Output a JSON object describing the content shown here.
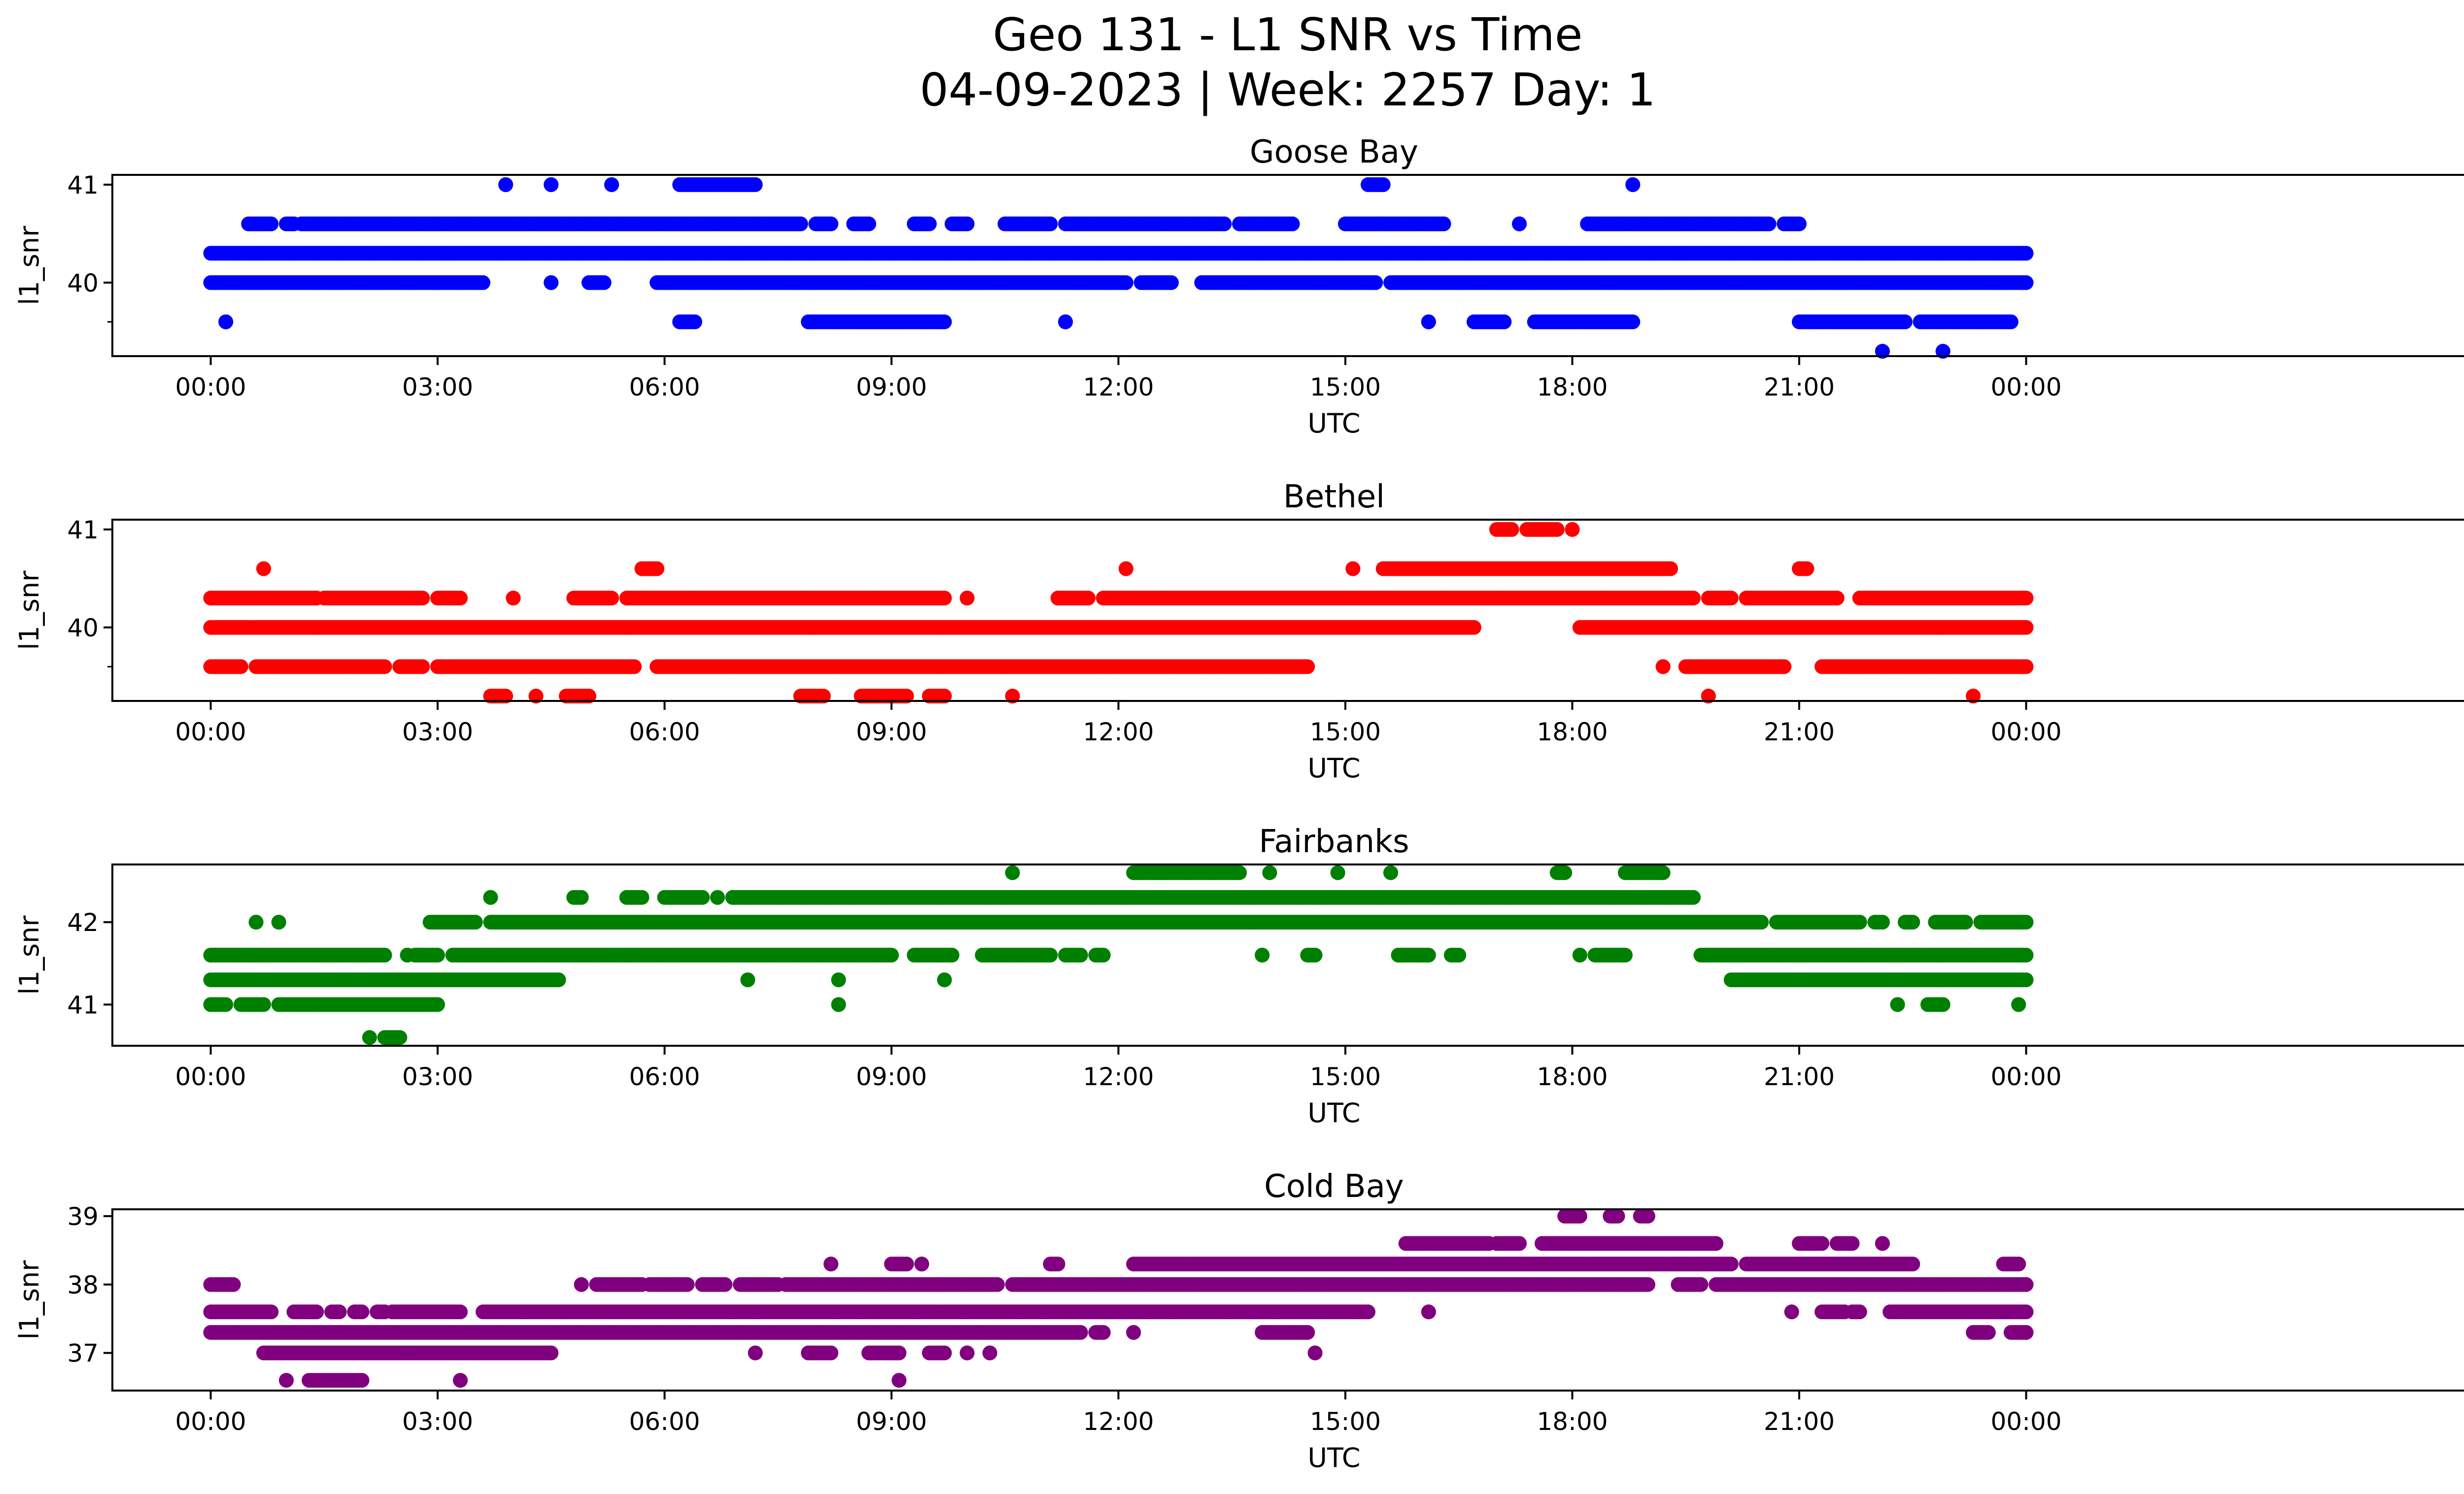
{
  "figure": {
    "title_line1": "Geo 131 - L1 SNR vs Time",
    "title_line2": "04-09-2023 | Week: 2257 Day: 1"
  },
  "chart_data": [
    {
      "type": "scatter",
      "title": "Goose Bay",
      "xlabel": "UTC",
      "ylabel": "l1_snr",
      "color": "#0000ff",
      "xlim": [
        -1.3,
        31.0
      ],
      "ylim": [
        39.25,
        41.1
      ],
      "xticks": [
        0,
        3,
        6,
        9,
        12,
        15,
        18,
        21,
        24
      ],
      "xtick_labels": [
        "00:00",
        "03:00",
        "06:00",
        "09:00",
        "12:00",
        "15:00",
        "18:00",
        "21:00",
        "00:00"
      ],
      "yticks": [
        40,
        41
      ],
      "yminor": [
        39.6
      ],
      "bands": [
        {
          "y": 40.3,
          "segments": [
            [
              0.0,
              24.0
            ]
          ]
        },
        {
          "y": 40.0,
          "segments": [
            [
              0.0,
              3.6
            ],
            [
              4.5,
              4.5
            ],
            [
              5.0,
              5.2
            ],
            [
              5.9,
              12.1
            ],
            [
              12.3,
              12.7
            ],
            [
              13.1,
              15.4
            ],
            [
              15.6,
              24.0
            ]
          ]
        },
        {
          "y": 40.6,
          "segments": [
            [
              0.5,
              0.8
            ],
            [
              1.0,
              1.1
            ],
            [
              1.2,
              7.8
            ],
            [
              8.0,
              8.2
            ],
            [
              8.5,
              8.7
            ],
            [
              9.3,
              9.5
            ],
            [
              9.8,
              10.0
            ],
            [
              10.5,
              11.1
            ],
            [
              11.3,
              13.4
            ],
            [
              13.6,
              14.3
            ],
            [
              15.0,
              16.3
            ],
            [
              17.3,
              17.3
            ],
            [
              18.2,
              20.6
            ],
            [
              20.8,
              21.0
            ]
          ]
        },
        {
          "y": 39.6,
          "segments": [
            [
              0.2,
              0.2
            ],
            [
              6.2,
              6.4
            ],
            [
              7.9,
              9.7
            ],
            [
              11.3,
              11.3
            ],
            [
              16.1,
              16.1
            ],
            [
              16.7,
              17.1
            ],
            [
              17.5,
              18.8
            ],
            [
              21.0,
              22.4
            ],
            [
              22.6,
              23.8
            ]
          ]
        },
        {
          "y": 41.0,
          "segments": [
            [
              3.9,
              3.9
            ],
            [
              4.5,
              4.5
            ],
            [
              5.3,
              5.3
            ],
            [
              6.2,
              7.2
            ],
            [
              15.3,
              15.5
            ],
            [
              18.8,
              18.8
            ]
          ]
        },
        {
          "y": 39.3,
          "segments": [
            [
              22.1,
              22.1
            ],
            [
              22.9,
              22.9
            ]
          ]
        }
      ]
    },
    {
      "type": "scatter",
      "title": "Bethel",
      "xlabel": "UTC",
      "ylabel": "l1_snr",
      "color": "#ff0000",
      "xlim": [
        -1.3,
        31.0
      ],
      "ylim": [
        39.25,
        41.1
      ],
      "xticks": [
        0,
        3,
        6,
        9,
        12,
        15,
        18,
        21,
        24
      ],
      "xtick_labels": [
        "00:00",
        "03:00",
        "06:00",
        "09:00",
        "12:00",
        "15:00",
        "18:00",
        "21:00",
        "00:00"
      ],
      "yticks": [
        40,
        41
      ],
      "yminor": [
        39.6
      ],
      "bands": [
        {
          "y": 40.0,
          "segments": [
            [
              0.0,
              16.7
            ],
            [
              18.1,
              24.0
            ]
          ]
        },
        {
          "y": 40.3,
          "segments": [
            [
              0.0,
              1.4
            ],
            [
              1.5,
              2.8
            ],
            [
              3.0,
              3.3
            ],
            [
              4.0,
              4.0
            ],
            [
              4.8,
              5.3
            ],
            [
              5.5,
              9.7
            ],
            [
              10.0,
              10.0
            ],
            [
              11.2,
              11.6
            ],
            [
              11.8,
              19.6
            ],
            [
              19.8,
              20.1
            ],
            [
              20.3,
              21.5
            ],
            [
              21.8,
              24.0
            ]
          ]
        },
        {
          "y": 39.6,
          "segments": [
            [
              0.0,
              0.4
            ],
            [
              0.6,
              2.3
            ],
            [
              2.5,
              2.8
            ],
            [
              3.0,
              5.6
            ],
            [
              5.9,
              14.5
            ],
            [
              19.2,
              19.2
            ],
            [
              19.5,
              20.8
            ],
            [
              21.3,
              24.0
            ]
          ]
        },
        {
          "y": 40.6,
          "segments": [
            [
              0.7,
              0.7
            ],
            [
              5.7,
              5.9
            ],
            [
              12.1,
              12.1
            ],
            [
              15.1,
              15.1
            ],
            [
              15.5,
              19.3
            ],
            [
              21.0,
              21.1
            ]
          ]
        },
        {
          "y": 39.3,
          "segments": [
            [
              3.7,
              3.9
            ],
            [
              4.3,
              4.3
            ],
            [
              4.7,
              5.0
            ],
            [
              7.8,
              8.1
            ],
            [
              8.6,
              9.2
            ],
            [
              9.5,
              9.7
            ],
            [
              10.6,
              10.6
            ],
            [
              19.8,
              19.8
            ],
            [
              23.3,
              23.3
            ]
          ]
        },
        {
          "y": 41.0,
          "segments": [
            [
              17.0,
              17.2
            ],
            [
              17.4,
              17.8
            ],
            [
              18.0,
              18.0
            ]
          ]
        }
      ]
    },
    {
      "type": "scatter",
      "title": "Fairbanks",
      "xlabel": "UTC",
      "ylabel": "l1_snr",
      "color": "#008000",
      "xlim": [
        -1.3,
        31.0
      ],
      "ylim": [
        40.5,
        42.7
      ],
      "xticks": [
        0,
        3,
        6,
        9,
        12,
        15,
        18,
        21,
        24
      ],
      "xtick_labels": [
        "00:00",
        "03:00",
        "06:00",
        "09:00",
        "12:00",
        "15:00",
        "18:00",
        "21:00",
        "00:00"
      ],
      "yticks": [
        41,
        42
      ],
      "yminor": [],
      "bands": [
        {
          "y": 41.3,
          "segments": [
            [
              0.0,
              4.6
            ],
            [
              20.1,
              24.0
            ]
          ]
        },
        {
          "y": 41.6,
          "segments": [
            [
              0.0,
              2.3
            ],
            [
              2.6,
              2.6
            ],
            [
              2.7,
              3.0
            ],
            [
              3.2,
              9.0
            ],
            [
              9.3,
              9.8
            ],
            [
              10.2,
              11.1
            ],
            [
              11.3,
              11.5
            ],
            [
              11.7,
              11.8
            ],
            [
              13.9,
              13.9
            ],
            [
              14.5,
              14.6
            ],
            [
              15.7,
              16.1
            ],
            [
              16.4,
              16.5
            ],
            [
              18.1,
              18.1
            ],
            [
              18.3,
              18.7
            ],
            [
              19.7,
              24.0
            ]
          ]
        },
        {
          "y": 42.0,
          "segments": [
            [
              0.6,
              0.6
            ],
            [
              0.9,
              0.9
            ],
            [
              2.9,
              3.5
            ],
            [
              3.7,
              20.5
            ],
            [
              20.7,
              21.8
            ],
            [
              22.0,
              22.1
            ],
            [
              22.4,
              22.5
            ],
            [
              22.8,
              23.2
            ],
            [
              23.4,
              24.0
            ]
          ]
        },
        {
          "y": 41.0,
          "segments": [
            [
              0.0,
              0.2
            ],
            [
              0.4,
              0.7
            ],
            [
              0.9,
              3.0
            ],
            [
              8.3,
              8.3
            ],
            [
              22.3,
              22.3
            ],
            [
              22.7,
              22.9
            ],
            [
              23.9,
              23.9
            ]
          ]
        },
        {
          "y": 42.3,
          "segments": [
            [
              3.7,
              3.7
            ],
            [
              4.8,
              4.9
            ],
            [
              5.5,
              5.7
            ],
            [
              6.0,
              6.5
            ],
            [
              6.7,
              6.7
            ],
            [
              6.9,
              19.6
            ]
          ]
        },
        {
          "y": 42.6,
          "segments": [
            [
              10.6,
              10.6
            ],
            [
              12.2,
              13.6
            ],
            [
              14.0,
              14.0
            ],
            [
              14.9,
              14.9
            ],
            [
              15.6,
              15.6
            ],
            [
              17.8,
              17.9
            ],
            [
              18.7,
              19.2
            ]
          ]
        },
        {
          "y": 40.6,
          "segments": [
            [
              2.1,
              2.1
            ],
            [
              2.3,
              2.5
            ]
          ]
        },
        {
          "y": 41.3,
          "segments": [
            [
              7.1,
              7.1
            ],
            [
              8.3,
              8.3
            ],
            [
              9.7,
              9.7
            ]
          ]
        }
      ]
    },
    {
      "type": "scatter",
      "title": "Cold Bay",
      "xlabel": "UTC",
      "ylabel": "l1_snr",
      "color": "#800080",
      "xlim": [
        -1.3,
        31.0
      ],
      "ylim": [
        36.45,
        39.1
      ],
      "xticks": [
        0,
        3,
        6,
        9,
        12,
        15,
        18,
        21,
        24
      ],
      "xtick_labels": [
        "00:00",
        "03:00",
        "06:00",
        "09:00",
        "12:00",
        "15:00",
        "18:00",
        "21:00",
        "00:00"
      ],
      "yticks": [
        37,
        38,
        39
      ],
      "yminor": [],
      "bands": [
        {
          "y": 37.3,
          "segments": [
            [
              0.0,
              11.5
            ],
            [
              11.7,
              11.8
            ],
            [
              12.2,
              12.2
            ],
            [
              13.9,
              14.5
            ]
          ]
        },
        {
          "y": 37.6,
          "segments": [
            [
              0.0,
              0.8
            ],
            [
              1.1,
              1.4
            ],
            [
              1.6,
              1.7
            ],
            [
              1.9,
              2.0
            ],
            [
              2.2,
              2.3
            ],
            [
              2.4,
              3.3
            ],
            [
              3.6,
              15.3
            ],
            [
              16.1,
              16.1
            ],
            [
              20.9,
              20.9
            ],
            [
              21.3,
              21.6
            ],
            [
              21.7,
              21.8
            ],
            [
              22.2,
              24.0
            ]
          ]
        },
        {
          "y": 37.0,
          "segments": [
            [
              0.7,
              4.5
            ],
            [
              7.2,
              7.2
            ],
            [
              7.9,
              8.2
            ],
            [
              8.7,
              9.1
            ],
            [
              9.5,
              9.7
            ],
            [
              10.0,
              10.0
            ],
            [
              10.3,
              10.3
            ],
            [
              14.6,
              14.6
            ]
          ]
        },
        {
          "y": 38.0,
          "segments": [
            [
              0.0,
              0.3
            ],
            [
              4.9,
              4.9
            ],
            [
              5.1,
              5.7
            ],
            [
              5.8,
              6.1
            ],
            [
              6.1,
              6.3
            ],
            [
              6.5,
              6.8
            ],
            [
              7.0,
              7.5
            ],
            [
              7.6,
              10.4
            ],
            [
              10.6,
              19.0
            ],
            [
              19.4,
              19.7
            ],
            [
              19.9,
              24.0
            ]
          ]
        },
        {
          "y": 38.3,
          "segments": [
            [
              8.2,
              8.2
            ],
            [
              9.0,
              9.2
            ],
            [
              9.4,
              9.4
            ],
            [
              11.1,
              11.2
            ],
            [
              12.2,
              20.1
            ],
            [
              20.3,
              22.5
            ],
            [
              23.7,
              23.9
            ]
          ]
        },
        {
          "y": 38.6,
          "segments": [
            [
              15.8,
              16.9
            ],
            [
              17.0,
              17.3
            ],
            [
              17.6,
              19.9
            ],
            [
              21.0,
              21.3
            ],
            [
              21.5,
              21.7
            ],
            [
              22.1,
              22.1
            ]
          ]
        },
        {
          "y": 39.0,
          "segments": [
            [
              17.9,
              18.1
            ],
            [
              18.5,
              18.6
            ],
            [
              18.9,
              19.0
            ]
          ]
        },
        {
          "y": 36.6,
          "segments": [
            [
              1.0,
              1.0
            ],
            [
              1.3,
              2.0
            ],
            [
              3.3,
              3.3
            ],
            [
              9.1,
              9.1
            ]
          ]
        },
        {
          "y": 37.3,
          "segments": [
            [
              23.3,
              23.5
            ],
            [
              23.8,
              24.0
            ]
          ]
        }
      ]
    }
  ]
}
